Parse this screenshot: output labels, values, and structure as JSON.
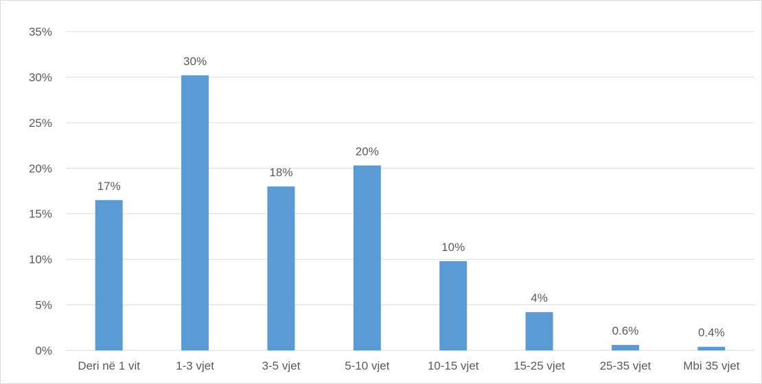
{
  "chart_data": {
    "type": "bar",
    "title": "",
    "xlabel": "",
    "ylabel": "",
    "categories": [
      "Deri në 1 vit",
      "1-3 vjet",
      "3-5 vjet",
      "5-10 vjet",
      "10-15 vjet",
      "15-25 vjet",
      "25-35 vjet",
      "Mbi 35 vjet"
    ],
    "values": [
      16.5,
      30.2,
      18.0,
      20.3,
      9.8,
      4.2,
      0.6,
      0.4
    ],
    "data_labels": [
      "17%",
      "30%",
      "18%",
      "20%",
      "10%",
      "4%",
      "0.6%",
      "0.4%"
    ],
    "ylim": [
      0,
      35
    ],
    "y_ticks": [
      0,
      5,
      10,
      15,
      20,
      25,
      30,
      35
    ],
    "y_tick_labels": [
      "0%",
      "5%",
      "10%",
      "15%",
      "20%",
      "25%",
      "30%",
      "35%"
    ],
    "grid": true,
    "legend": "none",
    "bar_color": "#5B9BD5",
    "grid_color": "#d9d9d9",
    "text_color": "#595959"
  }
}
